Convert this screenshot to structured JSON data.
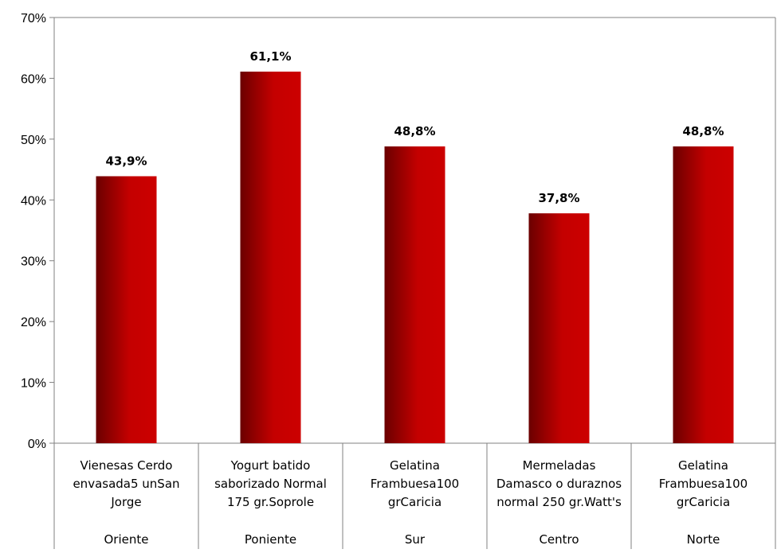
{
  "chart_data": {
    "type": "bar",
    "categories": [
      {
        "product": [
          "Vienesas Cerdo",
          "envasada5 unSan",
          "Jorge"
        ],
        "region": "Oriente"
      },
      {
        "product": [
          "Yogurt  batido",
          "saborizado Normal",
          "175 gr.Soprole"
        ],
        "region": "Poniente"
      },
      {
        "product": [
          "Gelatina",
          "Frambuesa100",
          "grCaricia"
        ],
        "region": "Sur"
      },
      {
        "product": [
          "Mermeladas",
          "Damasco o duraznos",
          "normal 250 gr.Watt's"
        ],
        "region": "Centro"
      },
      {
        "product": [
          "Gelatina",
          "Frambuesa100",
          "grCaricia"
        ],
        "region": "Norte"
      }
    ],
    "values": [
      43.9,
      61.1,
      48.8,
      37.8,
      48.8
    ],
    "data_labels": [
      "43,9%",
      "61,1%",
      "48,8%",
      "37,8%",
      "48,8%"
    ],
    "ylim": [
      0,
      70
    ],
    "yticks": [
      "0%",
      "10%",
      "20%",
      "30%",
      "40%",
      "50%",
      "60%",
      "70%"
    ],
    "grid": false,
    "colors": {
      "bar_dark": "#6b0000",
      "bar_light": "#cc0000",
      "axis": "#808080"
    }
  }
}
